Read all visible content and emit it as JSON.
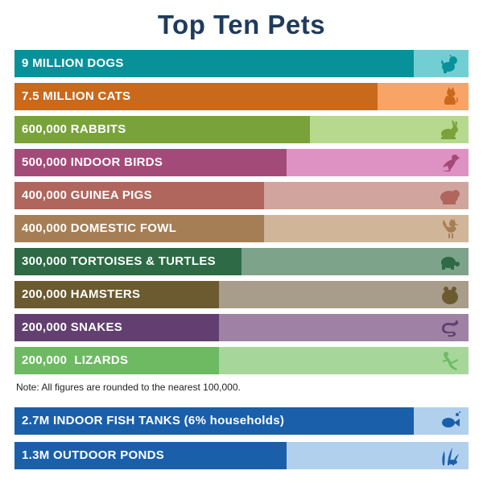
{
  "title": "Top Ten Pets",
  "note": "Note: All figures are rounded to the nearest 100,000.",
  "chart_data": [
    {
      "type": "bar",
      "title": "Top Ten Pets",
      "orientation": "horizontal",
      "unit": "animals",
      "categories": [
        "Dogs",
        "Cats",
        "Rabbits",
        "Indoor Birds",
        "Guinea Pigs",
        "Domestic Fowl",
        "Tortoises & Turtles",
        "Hamsters",
        "Snakes",
        "Lizards"
      ],
      "labels": [
        "9 MILLION DOGS",
        "7.5 MILLION CATS",
        "600,000 RABBITS",
        "500,000 INDOOR BIRDS",
        "400,000 GUINEA PIGS",
        "400,000 DOMESTIC FOWL",
        "300,000 TORTOISES & TURTLES",
        "200,000 HAMSTERS",
        "200,000 SNAKES",
        "200,000  LIZARDS"
      ],
      "values": [
        9000000,
        7500000,
        600000,
        500000,
        400000,
        400000,
        300000,
        200000,
        200000,
        200000
      ],
      "fill_fraction": [
        0.88,
        0.8,
        0.65,
        0.6,
        0.55,
        0.55,
        0.5,
        0.45,
        0.45,
        0.45
      ],
      "colors_dark": [
        "#09919a",
        "#c9691b",
        "#7aa23b",
        "#a44a78",
        "#b0665c",
        "#a67e55",
        "#2d6a45",
        "#6c5a30",
        "#633f71",
        "#6dba63"
      ],
      "colors_light": [
        "#71cfd3",
        "#f8a466",
        "#b7d98e",
        "#de92c3",
        "#d1a59e",
        "#d1b599",
        "#7ea38b",
        "#a89d8b",
        "#a081a6",
        "#a7d69b"
      ],
      "icons": [
        "dog-icon",
        "cat-icon",
        "rabbit-icon",
        "bird-icon",
        "guinea-pig-icon",
        "rooster-icon",
        "turtle-icon",
        "hamster-icon",
        "snake-icon",
        "lizard-icon"
      ]
    },
    {
      "type": "bar",
      "orientation": "horizontal",
      "categories": [
        "Indoor Fish Tanks",
        "Outdoor Ponds"
      ],
      "labels": [
        "2.7M INDOOR FISH TANKS (6% households)",
        "1.3M OUTDOOR PONDS"
      ],
      "values": [
        2700000,
        1300000
      ],
      "fill_fraction": [
        0.88,
        0.6
      ],
      "colors_dark": [
        "#1a5faa",
        "#1a5faa"
      ],
      "colors_light": [
        "#b1d0ee",
        "#b1d0ee"
      ],
      "icons": [
        "fish-icon",
        "pond-plant-icon"
      ]
    }
  ]
}
